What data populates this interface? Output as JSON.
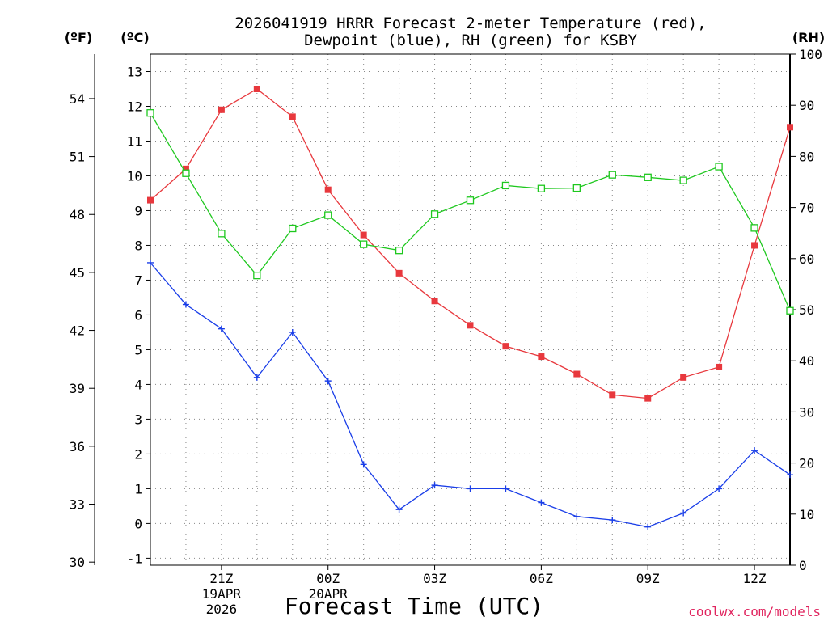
{
  "title_line1": "2026041919 HRRR Forecast 2-meter Temperature (red),",
  "title_line2": "Dewpoint (blue), RH (green) for KSBY",
  "unit_f": "(ºF)",
  "unit_c": "(ºC)",
  "unit_rh": "(RH)",
  "xlabel": "Forecast Time (UTC)",
  "credit": "coolwx.com/models",
  "chart_data": {
    "type": "line",
    "x_hours": [
      19,
      20,
      21,
      22,
      23,
      24,
      25,
      26,
      27,
      28,
      29,
      30,
      31,
      32,
      33,
      34,
      35,
      36,
      37
    ],
    "x_range": [
      19,
      37
    ],
    "x_ticks": [
      {
        "hour": 21,
        "lines": [
          "21Z",
          "19APR",
          "2026"
        ]
      },
      {
        "hour": 24,
        "lines": [
          "00Z",
          "20APR"
        ]
      },
      {
        "hour": 27,
        "lines": [
          "03Z"
        ]
      },
      {
        "hour": 30,
        "lines": [
          "06Z"
        ]
      },
      {
        "hour": 33,
        "lines": [
          "09Z"
        ]
      },
      {
        "hour": 36,
        "lines": [
          "12Z"
        ]
      }
    ],
    "ylim_c": [
      -1.2,
      13.5
    ],
    "ylim_rh": [
      0,
      100
    ],
    "yticks_c": [
      -1,
      0,
      1,
      2,
      3,
      4,
      5,
      6,
      7,
      8,
      9,
      10,
      11,
      12,
      13
    ],
    "yticks_f": [
      30,
      33,
      36,
      39,
      42,
      45,
      48,
      51,
      54
    ],
    "yticks_rh": [
      0,
      10,
      20,
      30,
      40,
      50,
      60,
      70,
      80,
      90,
      100
    ],
    "grid": true,
    "series": [
      {
        "name": "Temperature",
        "axis": "c",
        "color": "#e8383d",
        "marker": "filled-square",
        "values": [
          9.3,
          10.2,
          11.9,
          12.5,
          11.7,
          9.6,
          8.3,
          7.2,
          6.4,
          5.7,
          5.1,
          4.8,
          4.3,
          3.7,
          3.6,
          4.2,
          4.5,
          8.0,
          11.4
        ]
      },
      {
        "name": "Dewpoint",
        "axis": "c",
        "color": "#1a3ee8",
        "marker": "plus",
        "values": [
          7.5,
          6.3,
          5.6,
          4.2,
          5.5,
          4.1,
          1.7,
          0.4,
          1.1,
          1.0,
          1.0,
          0.6,
          0.2,
          0.1,
          -0.1,
          0.3,
          1.0,
          2.1,
          1.4
        ]
      },
      {
        "name": "RH",
        "axis": "rh",
        "color": "#1ec81e",
        "marker": "open-square",
        "values": [
          88.5,
          76.7,
          64.9,
          56.7,
          65.9,
          68.5,
          62.8,
          61.6,
          68.7,
          71.4,
          74.3,
          73.7,
          73.8,
          76.4,
          75.9,
          75.3,
          78.0,
          66.0,
          49.8
        ]
      }
    ]
  }
}
